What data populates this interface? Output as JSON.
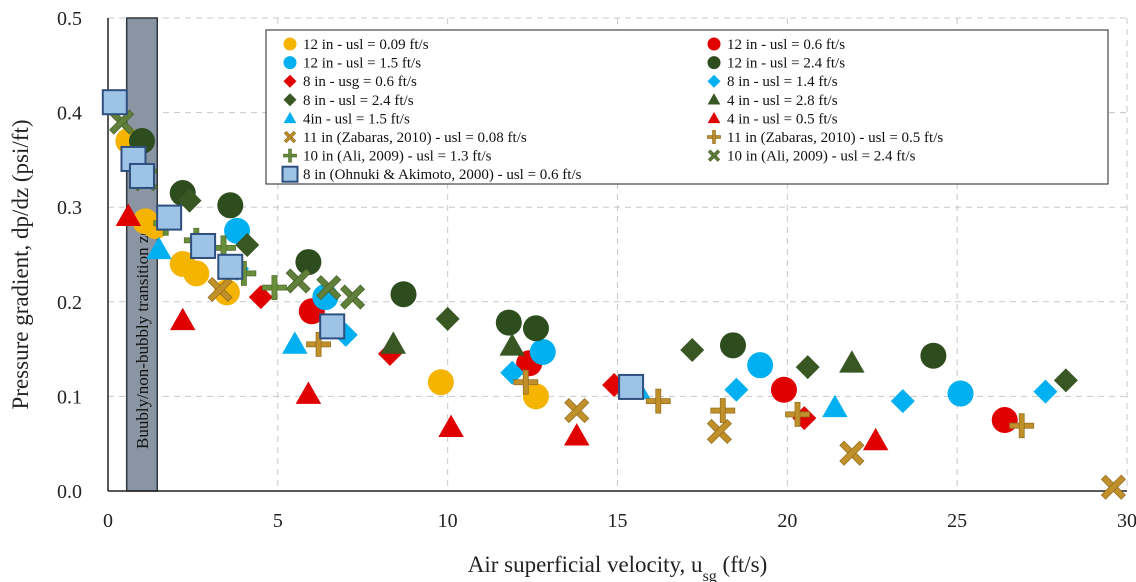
{
  "chart_data": {
    "type": "scatter",
    "xlabel_main": "Air superficial velocity, u",
    "xlabel_sub": "sg",
    "xlabel_end": " (ft/s)",
    "ylabel": "Pressure gradient, dp/dz (psi/ft)",
    "xlim": [
      0,
      30
    ],
    "ylim": [
      0,
      0.5
    ],
    "x_ticks": [
      0,
      5,
      10,
      15,
      20,
      25,
      30
    ],
    "y_ticks": [
      0.0,
      0.1,
      0.2,
      0.3,
      0.4,
      0.5
    ],
    "x_tick_labels": [
      "0",
      "5",
      "10",
      "15",
      "20",
      "25",
      "30"
    ],
    "y_tick_labels": [
      "0.0",
      "0.1",
      "0.2",
      "0.3",
      "0.4",
      "0.5"
    ],
    "grid": true,
    "legend_position": "top-right",
    "region_band": {
      "x_range": [
        0.55,
        1.45
      ],
      "label": "Buubly/non-bubbly transition zone",
      "color": "#8a95a3"
    },
    "series": [
      {
        "name": "12 in - usl = 0.09 ft/s",
        "marker": "circle",
        "color": "#f5b400",
        "points": [
          [
            0.6,
            0.37
          ],
          [
            1.1,
            0.285
          ],
          [
            1.4,
            0.28
          ],
          [
            2.2,
            0.24
          ],
          [
            2.6,
            0.23
          ],
          [
            3.5,
            0.21
          ],
          [
            9.8,
            0.115
          ],
          [
            12.6,
            0.1
          ]
        ]
      },
      {
        "name": "12 in - usl = 0.6 ft/s",
        "marker": "circle",
        "color": "#e00000",
        "points": [
          [
            6.0,
            0.19
          ],
          [
            12.4,
            0.135
          ],
          [
            19.9,
            0.107
          ],
          [
            26.4,
            0.075
          ]
        ]
      },
      {
        "name": "12 in - usl = 1.5 ft/s",
        "marker": "circle",
        "color": "#00b0f0",
        "points": [
          [
            3.8,
            0.275
          ],
          [
            6.4,
            0.205
          ],
          [
            12.8,
            0.147
          ],
          [
            19.2,
            0.133
          ],
          [
            25.1,
            0.103
          ]
        ]
      },
      {
        "name": "12 in - usl = 2.4 ft/s",
        "marker": "circle",
        "color": "#2e4d1e",
        "points": [
          [
            1.0,
            0.37
          ],
          [
            2.2,
            0.315
          ],
          [
            3.6,
            0.302
          ],
          [
            5.9,
            0.242
          ],
          [
            8.7,
            0.208
          ],
          [
            11.8,
            0.178
          ],
          [
            12.6,
            0.172
          ],
          [
            18.4,
            0.154
          ],
          [
            24.3,
            0.143
          ]
        ]
      },
      {
        "name": "8 in - usg = 0.6 ft/s",
        "marker": "diamond",
        "color": "#e00000",
        "points": [
          [
            4.5,
            0.205
          ],
          [
            8.3,
            0.145
          ],
          [
            14.9,
            0.112
          ],
          [
            20.5,
            0.077
          ]
        ]
      },
      {
        "name": "8 in - usl = 1.4 ft/s",
        "marker": "diamond",
        "color": "#00b0f0",
        "points": [
          [
            3.8,
            0.235
          ],
          [
            7.0,
            0.165
          ],
          [
            11.9,
            0.125
          ],
          [
            18.5,
            0.107
          ],
          [
            23.4,
            0.095
          ],
          [
            27.6,
            0.105
          ]
        ]
      },
      {
        "name": "8 in - usl = 2.4 ft/s",
        "marker": "diamond",
        "color": "#385723",
        "points": [
          [
            2.4,
            0.307
          ],
          [
            4.1,
            0.26
          ],
          [
            10.0,
            0.182
          ],
          [
            17.2,
            0.149
          ],
          [
            20.6,
            0.131
          ],
          [
            28.2,
            0.117
          ]
        ]
      },
      {
        "name": "4 in - usl = 2.8 ft/s",
        "marker": "triangle",
        "color": "#385723",
        "points": [
          [
            8.4,
            0.155
          ],
          [
            11.9,
            0.153
          ],
          [
            21.9,
            0.135
          ]
        ]
      },
      {
        "name": "4in - usl = 1.5 ft/s",
        "marker": "triangle",
        "color": "#00b0f0",
        "points": [
          [
            1.5,
            0.255
          ],
          [
            5.5,
            0.155
          ],
          [
            15.6,
            0.107
          ],
          [
            21.4,
            0.088
          ]
        ]
      },
      {
        "name": "4 in - usl = 0.5 ft/s",
        "marker": "triangle",
        "color": "#e00000",
        "points": [
          [
            0.6,
            0.29
          ],
          [
            2.2,
            0.18
          ],
          [
            5.9,
            0.102
          ],
          [
            10.1,
            0.067
          ],
          [
            13.8,
            0.058
          ],
          [
            22.6,
            0.053
          ]
        ]
      },
      {
        "name": "11 in (Zabaras, 2010) - usl = 0.08 ft/s",
        "marker": "x",
        "color": "#c0902a",
        "points": [
          [
            3.3,
            0.213
          ],
          [
            13.8,
            0.085
          ],
          [
            18.0,
            0.063
          ],
          [
            21.9,
            0.04
          ],
          [
            29.6,
            0.004
          ]
        ]
      },
      {
        "name": "11 in (Zabaras, 2010) - usl = 0.5 ft/s",
        "marker": "plus",
        "color": "#c0902a",
        "points": [
          [
            6.2,
            0.155
          ],
          [
            12.3,
            0.115
          ],
          [
            16.2,
            0.095
          ],
          [
            18.1,
            0.085
          ],
          [
            20.3,
            0.081
          ],
          [
            26.9,
            0.069
          ]
        ]
      },
      {
        "name": "10 in (Ali, 2009) - usl = 1.3 ft/s",
        "marker": "plus",
        "color": "#6a8f3c",
        "points": [
          [
            1.7,
            0.283
          ],
          [
            2.6,
            0.265
          ],
          [
            3.4,
            0.257
          ],
          [
            4.0,
            0.23
          ],
          [
            4.9,
            0.215
          ]
        ]
      },
      {
        "name": "10 in (Ali, 2009) - usl = 2.4 ft/s",
        "marker": "x",
        "color": "#5f7f3a",
        "points": [
          [
            0.4,
            0.39
          ],
          [
            1.1,
            0.33
          ],
          [
            5.6,
            0.222
          ],
          [
            6.5,
            0.215
          ],
          [
            7.2,
            0.205
          ]
        ]
      },
      {
        "name": "8 in (Ohnuki & Akimoto, 2000) - usl = 0.6 ft/s",
        "marker": "square",
        "color": "#9dc3e6",
        "points": [
          [
            0.2,
            0.411
          ],
          [
            0.75,
            0.351
          ],
          [
            1.0,
            0.333
          ],
          [
            1.8,
            0.289
          ],
          [
            2.8,
            0.259
          ],
          [
            3.6,
            0.237
          ],
          [
            6.6,
            0.174
          ],
          [
            15.4,
            0.11
          ]
        ]
      }
    ]
  }
}
